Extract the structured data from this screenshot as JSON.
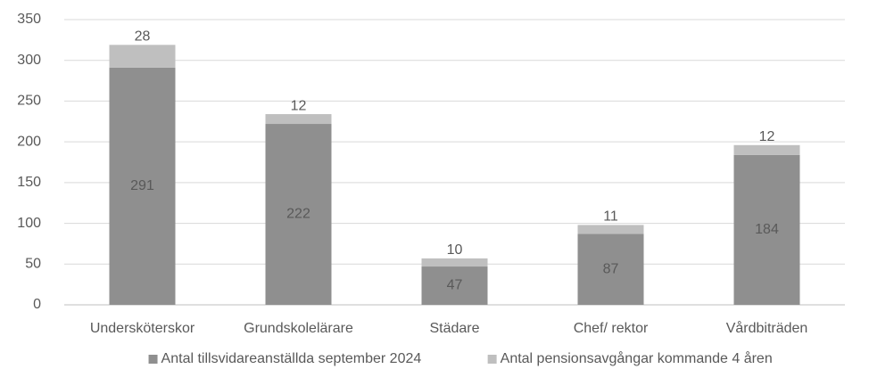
{
  "chart_data": {
    "type": "stacked_bar",
    "categories": [
      "Undersköterskor",
      "Grundskolelärare",
      "Städare",
      "Chef/ rektor",
      "Vårdbiträden"
    ],
    "series": [
      {
        "name": "Antal tillsvidareanställda september 2024",
        "color": "#8f8f8f",
        "values": [
          291,
          222,
          47,
          87,
          184
        ]
      },
      {
        "name": "Antal pensionsavgångar kommande 4 åren",
        "color": "#bfbfbf",
        "values": [
          28,
          12,
          10,
          11,
          12
        ]
      }
    ],
    "ylim": [
      0,
      350
    ],
    "yticks": [
      0,
      50,
      100,
      150,
      200,
      250,
      300,
      350
    ],
    "grid": true,
    "legend": "bottom"
  }
}
